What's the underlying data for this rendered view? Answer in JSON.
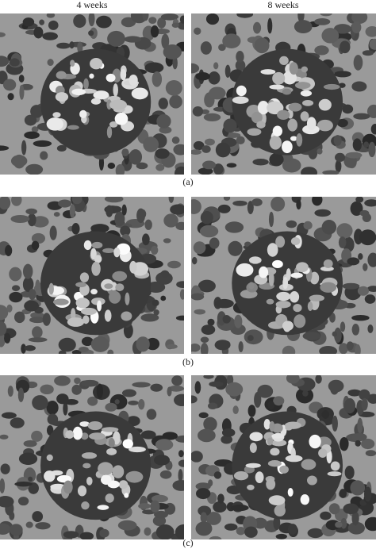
{
  "column_headers": [
    "4 weeks",
    "8 weeks"
  ],
  "rows": [
    {
      "label": "(a)"
    },
    {
      "label": "(b)"
    },
    {
      "label": "(c)"
    }
  ]
}
